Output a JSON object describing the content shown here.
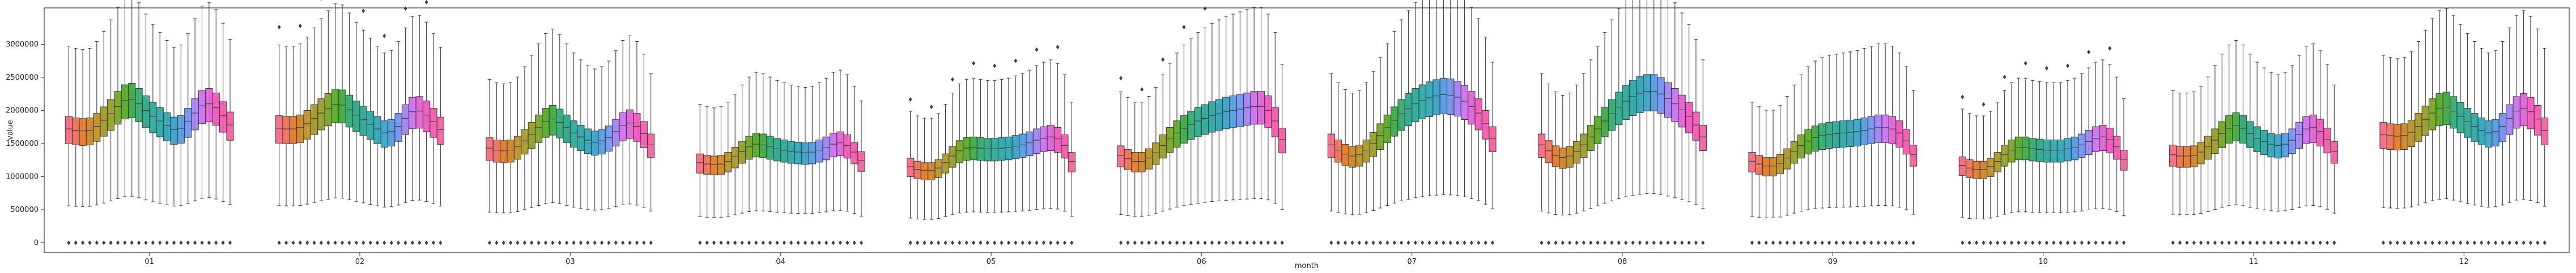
{
  "chart_data": {
    "type": "box",
    "xlabel": "month",
    "ylabel": "value",
    "categories": [
      "01",
      "02",
      "03",
      "04",
      "05",
      "06",
      "07",
      "08",
      "09",
      "10",
      "11",
      "12"
    ],
    "hue_boxes_per_category": 24,
    "yticks": [
      0,
      500000,
      1000000,
      1500000,
      2000000,
      2500000,
      3000000
    ],
    "ytick_labels": [
      "0",
      "500000",
      "1000000",
      "1500000",
      "2000000",
      "2500000",
      "3000000"
    ],
    "ylim": [
      -150000,
      3550000
    ],
    "grid": false,
    "outlier_marker": "diamond",
    "palette": [
      "#f77189",
      "#e48131",
      "#bb9832",
      "#97a431",
      "#50b131",
      "#34af8a",
      "#36ada4",
      "#38a9c5",
      "#6e9bf4",
      "#cc7af4",
      "#f45cc2",
      "#f668a4"
    ],
    "series": [
      {
        "month": "01",
        "medians": [
          1720000,
          1700000,
          1690000,
          1700000,
          1760000,
          1850000,
          1950000,
          2060000,
          2150000,
          2170000,
          2100000,
          2000000,
          1910000,
          1840000,
          1770000,
          1710000,
          1730000,
          1830000,
          1960000,
          2070000,
          2100000,
          2040000,
          1920000,
          1780000
        ]
      },
      {
        "month": "02",
        "medians": [
          1730000,
          1720000,
          1720000,
          1740000,
          1800000,
          1880000,
          1960000,
          2030000,
          2090000,
          2080000,
          2010000,
          1930000,
          1860000,
          1790000,
          1720000,
          1660000,
          1680000,
          1760000,
          1880000,
          1980000,
          1990000,
          1930000,
          1830000,
          1710000
        ]
      },
      {
        "month": "03",
        "medians": [
          1430000,
          1400000,
          1390000,
          1400000,
          1450000,
          1540000,
          1640000,
          1740000,
          1830000,
          1870000,
          1820000,
          1740000,
          1660000,
          1600000,
          1550000,
          1520000,
          1540000,
          1590000,
          1680000,
          1770000,
          1810000,
          1760000,
          1650000,
          1480000
        ]
      },
      {
        "month": "04",
        "medians": [
          1210000,
          1190000,
          1180000,
          1190000,
          1230000,
          1300000,
          1380000,
          1450000,
          1490000,
          1480000,
          1450000,
          1420000,
          1400000,
          1380000,
          1370000,
          1360000,
          1370000,
          1400000,
          1440000,
          1490000,
          1510000,
          1470000,
          1370000,
          1240000
        ]
      },
      {
        "month": "05",
        "medians": [
          1150000,
          1110000,
          1090000,
          1090000,
          1130000,
          1210000,
          1310000,
          1390000,
          1430000,
          1440000,
          1430000,
          1420000,
          1420000,
          1430000,
          1440000,
          1460000,
          1480000,
          1510000,
          1550000,
          1580000,
          1600000,
          1570000,
          1470000,
          1230000
        ]
      },
      {
        "month": "06",
        "medians": [
          1320000,
          1270000,
          1230000,
          1230000,
          1280000,
          1360000,
          1470000,
          1570000,
          1660000,
          1730000,
          1790000,
          1840000,
          1880000,
          1920000,
          1950000,
          1980000,
          2000000,
          2020000,
          2040000,
          2060000,
          2060000,
          2000000,
          1840000,
          1560000
        ]
      },
      {
        "month": "07",
        "medians": [
          1480000,
          1400000,
          1340000,
          1310000,
          1330000,
          1400000,
          1500000,
          1620000,
          1740000,
          1850000,
          1950000,
          2030000,
          2100000,
          2150000,
          2190000,
          2220000,
          2240000,
          2230000,
          2200000,
          2140000,
          2060000,
          1960000,
          1800000,
          1580000
        ]
      },
      {
        "month": "08",
        "medians": [
          1480000,
          1390000,
          1320000,
          1290000,
          1310000,
          1380000,
          1480000,
          1600000,
          1720000,
          1840000,
          1950000,
          2050000,
          2140000,
          2210000,
          2260000,
          2290000,
          2290000,
          2250000,
          2180000,
          2100000,
          2010000,
          1910000,
          1780000,
          1600000
        ]
      },
      {
        "month": "09",
        "medians": [
          1230000,
          1190000,
          1160000,
          1160000,
          1200000,
          1280000,
          1380000,
          1470000,
          1540000,
          1590000,
          1620000,
          1640000,
          1650000,
          1660000,
          1670000,
          1680000,
          1700000,
          1720000,
          1740000,
          1740000,
          1720000,
          1660000,
          1540000,
          1330000
        ]
      },
      {
        "month": "10",
        "medians": [
          1170000,
          1130000,
          1110000,
          1110000,
          1150000,
          1230000,
          1330000,
          1400000,
          1440000,
          1440000,
          1420000,
          1410000,
          1400000,
          1400000,
          1400000,
          1420000,
          1440000,
          1480000,
          1530000,
          1580000,
          1600000,
          1560000,
          1450000,
          1260000
        ]
      },
      {
        "month": "11",
        "medians": [
          1330000,
          1310000,
          1310000,
          1320000,
          1370000,
          1450000,
          1550000,
          1650000,
          1730000,
          1770000,
          1730000,
          1650000,
          1580000,
          1530000,
          1490000,
          1470000,
          1490000,
          1550000,
          1640000,
          1720000,
          1740000,
          1680000,
          1560000,
          1380000
        ]
      },
      {
        "month": "12",
        "medians": [
          1640000,
          1620000,
          1610000,
          1620000,
          1670000,
          1760000,
          1860000,
          1960000,
          2030000,
          2050000,
          1990000,
          1910000,
          1830000,
          1760000,
          1700000,
          1660000,
          1680000,
          1760000,
          1880000,
          1990000,
          2030000,
          1980000,
          1870000,
          1700000
        ]
      }
    ]
  }
}
